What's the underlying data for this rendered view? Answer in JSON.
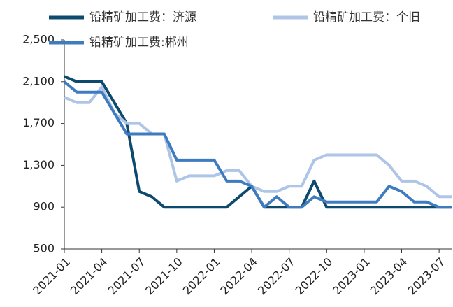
{
  "chart_data": {
    "type": "line",
    "x": [
      "2021-01",
      "2021-02",
      "2021-03",
      "2021-04",
      "2021-05",
      "2021-06",
      "2021-07",
      "2021-08",
      "2021-09",
      "2021-10",
      "2021-11",
      "2021-12",
      "2022-01",
      "2022-02",
      "2022-03",
      "2022-04",
      "2022-05",
      "2022-06",
      "2022-07",
      "2022-08",
      "2022-09",
      "2022-10",
      "2022-11",
      "2022-12",
      "2023-01",
      "2023-02",
      "2023-03",
      "2023-04",
      "2023-05",
      "2023-06",
      "2023-07",
      "2023-08"
    ],
    "xticks": [
      "2021-01",
      "2021-04",
      "2021-07",
      "2021-10",
      "2022-01",
      "2022-04",
      "2022-07",
      "2022-10",
      "2023-01",
      "2023-04",
      "2023-07"
    ],
    "series": [
      {
        "name": "铅精矿加工费：济源",
        "color": "#0d4a6e",
        "values": [
          2150,
          2100,
          2100,
          2100,
          1900,
          1700,
          1050,
          1000,
          900,
          900,
          900,
          900,
          900,
          900,
          1000,
          1100,
          900,
          900,
          900,
          900,
          1150,
          900,
          900,
          900,
          900,
          900,
          900,
          900,
          900,
          900,
          900,
          900
        ]
      },
      {
        "name": "铅精矿加工费：个旧",
        "color": "#aec5e8",
        "values": [
          1950,
          1900,
          1900,
          2050,
          1800,
          1700,
          1700,
          1600,
          1600,
          1150,
          1200,
          1200,
          1200,
          1250,
          1250,
          1100,
          1050,
          1050,
          1100,
          1100,
          1350,
          1400,
          1400,
          1400,
          1400,
          1400,
          1300,
          1150,
          1150,
          1100,
          1000,
          1000
        ]
      },
      {
        "name": "铅精矿加工费:郴州",
        "color": "#3f7bbf",
        "values": [
          2100,
          2000,
          2000,
          2000,
          1800,
          1600,
          1600,
          1600,
          1600,
          1350,
          1350,
          1350,
          1350,
          1150,
          1150,
          1100,
          900,
          1000,
          900,
          900,
          1000,
          950,
          950,
          950,
          950,
          950,
          1100,
          1050,
          950,
          950,
          900,
          900
        ]
      }
    ],
    "ylim": [
      500,
      2500
    ],
    "yticks": [
      {
        "value": 500,
        "label": "500"
      },
      {
        "value": 900,
        "label": "900"
      },
      {
        "value": 1300,
        "label": "1,300"
      },
      {
        "value": 1700,
        "label": "1,700"
      },
      {
        "value": 2100,
        "label": "2,100"
      },
      {
        "value": 2500,
        "label": "2,500"
      }
    ]
  }
}
